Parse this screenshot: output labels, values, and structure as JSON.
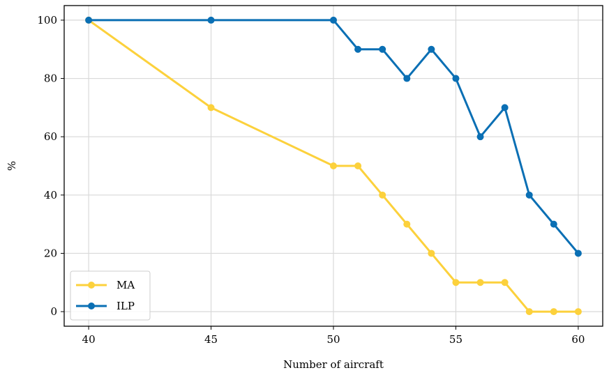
{
  "chart_data": {
    "type": "line",
    "title": "",
    "xlabel": "Number of aircraft",
    "ylabel": "%",
    "xlim": [
      39,
      61
    ],
    "ylim": [
      -5,
      105
    ],
    "xticks": [
      40,
      45,
      50,
      55,
      60
    ],
    "yticks": [
      0,
      20,
      40,
      60,
      80,
      100
    ],
    "grid": true,
    "legend_position": "lower-left",
    "series": [
      {
        "name": "MA",
        "color": "#FCD13C",
        "x": [
          40,
          45,
          50,
          51,
          52,
          53,
          54,
          55,
          56,
          57,
          58,
          59,
          60
        ],
        "y": [
          100,
          70,
          50,
          50,
          40,
          30,
          20,
          10,
          10,
          10,
          0,
          0,
          0
        ]
      },
      {
        "name": "ILP",
        "color": "#0A6FB4",
        "x": [
          40,
          45,
          50,
          51,
          52,
          53,
          54,
          55,
          56,
          57,
          58,
          59,
          60
        ],
        "y": [
          100,
          100,
          100,
          90,
          90,
          80,
          90,
          80,
          60,
          70,
          40,
          30,
          20
        ]
      }
    ]
  }
}
